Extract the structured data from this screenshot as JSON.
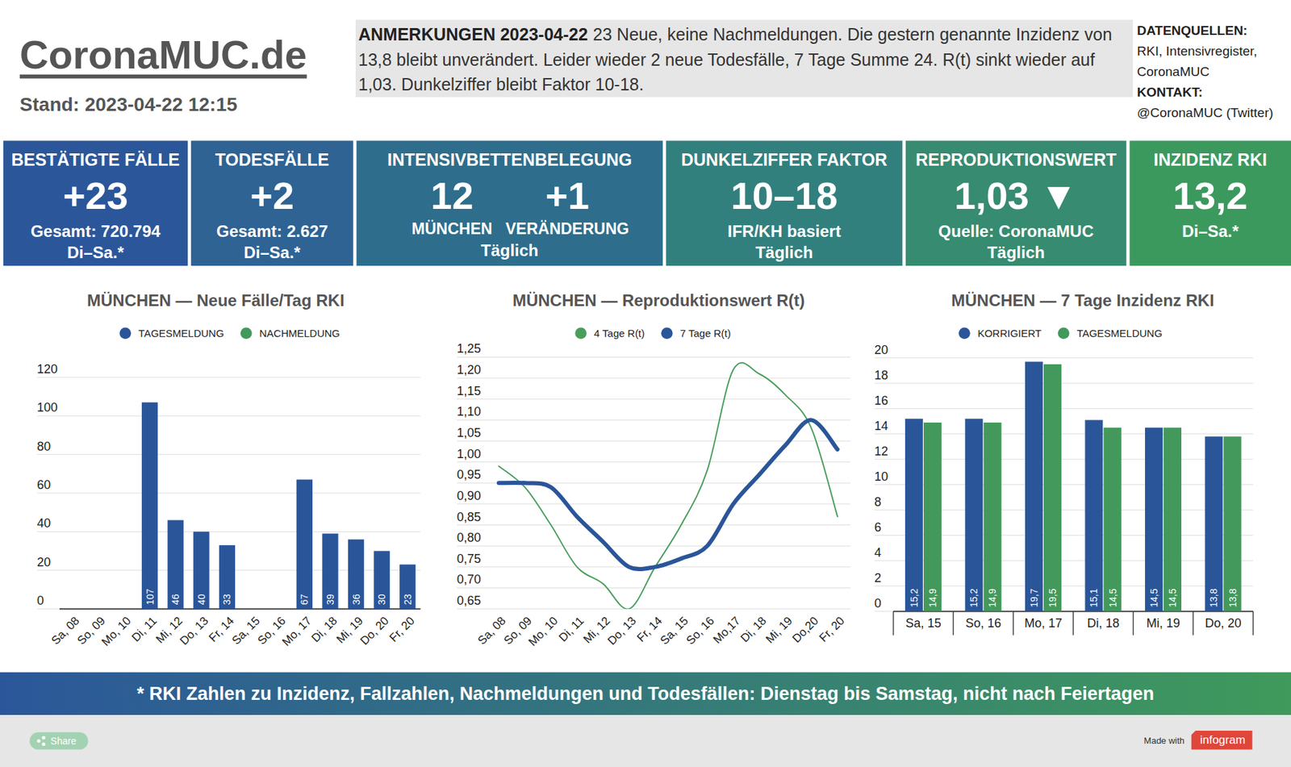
{
  "header": {
    "title": "CoronaMUC.de",
    "stand": "Stand: 2023-04-22 12:15"
  },
  "annotation": {
    "label": "ANMERKUNGEN 2023-04-22",
    "text": "23 Neue, keine Nachmeldungen. Die gestern genannte Inzidenz von 13,8 bleibt unverändert. Leider wieder 2 neue Todesfälle, 7 Tage Summe 24. R(t) sinkt wieder auf 1,03. Dunkelziffer bleibt Faktor 10-18."
  },
  "sources": {
    "label": "DATENQUELLEN:",
    "lines": [
      "RKI, Intensivregister,",
      "CoronaMUC"
    ],
    "contact_label": "KONTAKT:",
    "contact": "@CoronaMUC (Twitter)"
  },
  "kpis": [
    {
      "title": "BESTÄTIGTE FÄLLE",
      "value": "+23",
      "lines": [
        "Gesamt: 720.794",
        "Di–Sa.*"
      ]
    },
    {
      "title": "TODESFÄLLE",
      "value": "+2",
      "lines": [
        "Gesamt: 2.627",
        "Di–Sa.*"
      ]
    },
    {
      "title": "INTENSIVBETTENBELEGUNG",
      "values": [
        {
          "value": "12",
          "label": "MÜNCHEN"
        },
        {
          "value": "+1",
          "label": "VERÄNDERUNG"
        }
      ],
      "lines": [
        "Täglich"
      ]
    },
    {
      "title": "DUNKELZIFFER FAKTOR",
      "value": "10–18",
      "lines": [
        "IFR/KH basiert",
        "Täglich"
      ]
    },
    {
      "title": "REPRODUKTIONSWERT",
      "value": "1,03 ▼",
      "lines": [
        "Quelle: CoronaMUC",
        "Täglich"
      ]
    },
    {
      "title": "INZIDENZ RKI",
      "value": "13,2",
      "lines": [
        "Di–Sa.*"
      ]
    }
  ],
  "chart_data": [
    {
      "type": "bar",
      "title": "MÜNCHEN — Neue Fälle/Tag RKI",
      "categories": [
        "Sa, 08",
        "So, 09",
        "Mo, 10",
        "Di, 11",
        "Mi, 12",
        "Do, 13",
        "Fr, 14",
        "Sa, 15",
        "So, 16",
        "Mo, 17",
        "Di, 18",
        "Mi, 19",
        "Do, 20",
        "Fr, 20"
      ],
      "series": [
        {
          "name": "TAGESMELDUNG",
          "color": "#2a5699",
          "values": [
            null,
            null,
            null,
            107,
            46,
            40,
            33,
            null,
            null,
            67,
            39,
            36,
            30,
            23
          ]
        },
        {
          "name": "NACHMELDUNG",
          "color": "#43995b",
          "values": [
            null,
            null,
            null,
            null,
            null,
            null,
            null,
            null,
            null,
            null,
            null,
            null,
            null,
            null
          ]
        }
      ],
      "ylim": [
        0,
        120
      ],
      "yticks": [
        0,
        20,
        40,
        60,
        80,
        100,
        120
      ],
      "grid": true,
      "data_labels": true,
      "legend": "top"
    },
    {
      "type": "line",
      "title": "MÜNCHEN — Reproduktionswert R(t)",
      "categories": [
        "Sa, 08",
        "So, 09",
        "Mo, 10",
        "Di, 11",
        "Mi, 12",
        "Do, 13",
        "Fr, 14",
        "Sa, 15",
        "So, 16",
        "Mo,17",
        "Di, 18",
        "Mi, 19",
        "Do,20",
        "Fr, 20"
      ],
      "series": [
        {
          "name": "4 Tage R(t)",
          "color": "#4a9e5c",
          "values": [
            0.99,
            0.94,
            0.85,
            0.75,
            0.71,
            0.65,
            0.75,
            0.85,
            0.98,
            1.22,
            1.21,
            1.16,
            1.08,
            0.87
          ]
        },
        {
          "name": "7 Tage R(t)",
          "color": "#2a5699",
          "values": [
            0.95,
            0.95,
            0.94,
            0.87,
            0.81,
            0.75,
            0.75,
            0.77,
            0.8,
            0.9,
            0.97,
            1.04,
            1.1,
            1.03
          ]
        }
      ],
      "ylim": [
        0.65,
        1.25
      ],
      "yticks": [
        {
          "value": 0.65,
          "label": "0,65"
        },
        {
          "value": 0.7,
          "label": "0,70"
        },
        {
          "value": 0.75,
          "label": "0,75"
        },
        {
          "value": 0.8,
          "label": "0,80"
        },
        {
          "value": 0.85,
          "label": "0,85"
        },
        {
          "value": 0.9,
          "label": "0,90"
        },
        {
          "value": 0.95,
          "label": "0,95"
        },
        {
          "value": 1.0,
          "label": "1,00"
        },
        {
          "value": 1.05,
          "label": "1,05"
        },
        {
          "value": 1.1,
          "label": "1,10"
        },
        {
          "value": 1.15,
          "label": "1,15"
        },
        {
          "value": 1.2,
          "label": "1,20"
        },
        {
          "value": 1.25,
          "label": "1,25"
        }
      ],
      "grid": true,
      "legend": "top"
    },
    {
      "type": "bar",
      "title": "MÜNCHEN — 7 Tage Inzidenz RKI",
      "categories": [
        "Sa, 15",
        "So, 16",
        "Mo, 17",
        "Di, 18",
        "Mi, 19",
        "Do, 20"
      ],
      "series": [
        {
          "name": "KORRIGIERT",
          "color": "#2a5699",
          "values": [
            15.2,
            15.2,
            19.7,
            15.1,
            14.5,
            13.8
          ],
          "value_labels": [
            "15,2",
            "15,2",
            "19,7",
            "15,1",
            "14,5",
            "13,8"
          ]
        },
        {
          "name": "TAGESMELDUNG",
          "color": "#43995b",
          "values": [
            14.9,
            14.9,
            19.5,
            14.5,
            14.5,
            13.8
          ],
          "value_labels": [
            "14,9",
            "14,9",
            "19,5",
            "14,5",
            "14,5",
            "13,8"
          ]
        }
      ],
      "ylim": [
        0,
        20
      ],
      "yticks": [
        0,
        2,
        4,
        6,
        8,
        10,
        12,
        14,
        16,
        18,
        20
      ],
      "grid": true,
      "data_labels": true,
      "legend": "top"
    }
  ],
  "footer": {
    "note": "* RKI Zahlen zu Inzidenz, Fallzahlen, Nachmeldungen und Todesfällen: Dienstag bis Samstag, nicht nach Feiertagen",
    "share": "Share",
    "made_with": "Made with",
    "brand": "infogram"
  }
}
